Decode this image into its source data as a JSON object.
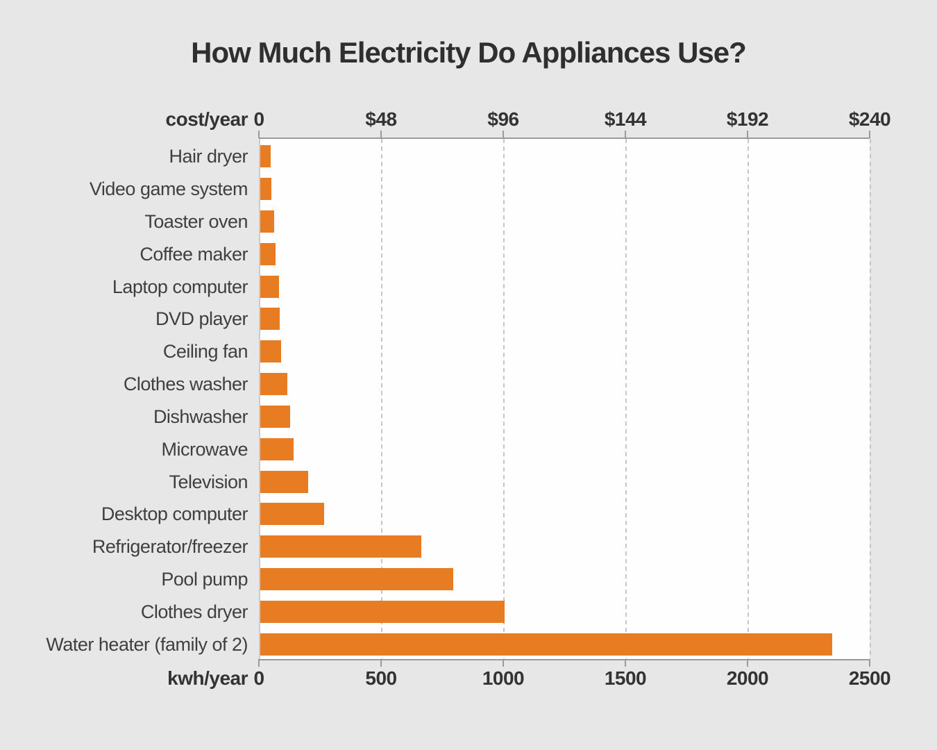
{
  "title": "How Much Electricity Do Appliances Use?",
  "colors": {
    "bar": "#e87c23",
    "background": "#e7e7e7",
    "plot_background": "#fefefe",
    "axis_line": "#9a9a9a",
    "gridline": "#c6c6c6",
    "title_text": "#2f2f2f",
    "label_text": "#3f3f3f",
    "tick_text": "#333333"
  },
  "chart_data": {
    "type": "bar",
    "orientation": "horizontal",
    "title": "How Much Electricity Do Appliances Use?",
    "categories": [
      "Hair dryer",
      "Video game system",
      "Toaster oven",
      "Coffee maker",
      "Laptop computer",
      "DVD player",
      "Ceiling fan",
      "Clothes washer",
      "Dishwasher",
      "Microwave",
      "Television",
      "Desktop computer",
      "Refrigerator/freezer",
      "Pool pump",
      "Clothes dryer",
      "Water heater (family of 2)"
    ],
    "values": [
      42,
      45,
      57,
      62,
      77,
      80,
      85,
      110,
      122,
      136,
      195,
      260,
      660,
      790,
      1000,
      2340
    ],
    "unit": "kwh/year",
    "xlabel_top": "cost/year",
    "xlabel_bottom": "kwh/year",
    "xlim": [
      0,
      2500
    ],
    "x_ticks_bottom": [
      "0",
      "500",
      "1000",
      "1500",
      "2000",
      "2500"
    ],
    "x_ticks_top": [
      "0",
      "$48",
      "$96",
      "$144",
      "$192",
      "$240"
    ],
    "grid": "dashed-vertical",
    "legend": false
  }
}
